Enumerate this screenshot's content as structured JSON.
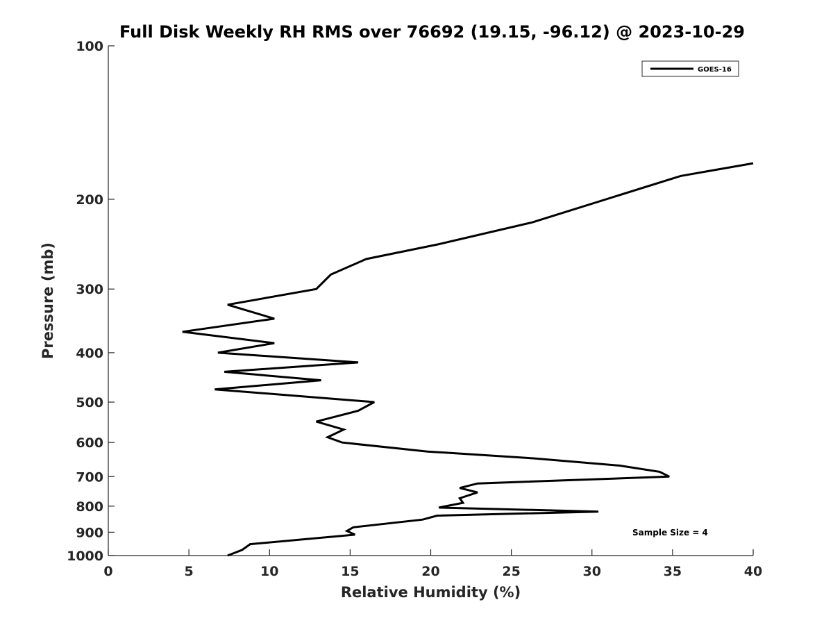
{
  "chart_data": {
    "type": "line",
    "title": "Full Disk Weekly RH RMS over 76692 (19.15, -96.12) @ 2023-10-29",
    "xlabel": "Relative Humidity (%)",
    "ylabel": "Pressure (mb)",
    "xlim": [
      0,
      40
    ],
    "ylim": [
      100,
      1000
    ],
    "y_scale": "log",
    "y_reversed": true,
    "xticks": [
      0,
      5,
      10,
      15,
      20,
      25,
      30,
      35,
      40
    ],
    "yticks": [
      100,
      200,
      300,
      400,
      500,
      600,
      700,
      800,
      900,
      1000
    ],
    "grid": false,
    "legend_position": "top-right",
    "series": [
      {
        "name": "GOES-16",
        "color": "#000000",
        "x": [
          40.0,
          35.5,
          26.3,
          20.5,
          16.0,
          13.8,
          12.9,
          7.4,
          10.3,
          4.6,
          10.3,
          6.8,
          15.5,
          7.2,
          13.2,
          6.6,
          16.5,
          15.5,
          12.9,
          14.6,
          13.6,
          14.5,
          19.8,
          26.5,
          31.7,
          34.2,
          34.8,
          22.9,
          21.8,
          22.9,
          21.8,
          22.0,
          20.5,
          30.4,
          20.4,
          19.5,
          15.2,
          14.8,
          15.3,
          8.8,
          8.3,
          7.4
        ],
        "y": [
          170,
          180,
          222,
          245,
          262,
          281,
          300,
          322,
          343,
          364,
          383,
          400,
          418,
          436,
          453,
          472,
          500,
          520,
          546,
          566,
          586,
          600,
          625,
          645,
          666,
          685,
          700,
          722,
          737,
          752,
          772,
          788,
          805,
          820,
          835,
          850,
          880,
          895,
          910,
          950,
          975,
          1000
        ]
      }
    ],
    "annotations": [
      {
        "text": "Sample Size = 4"
      }
    ]
  }
}
